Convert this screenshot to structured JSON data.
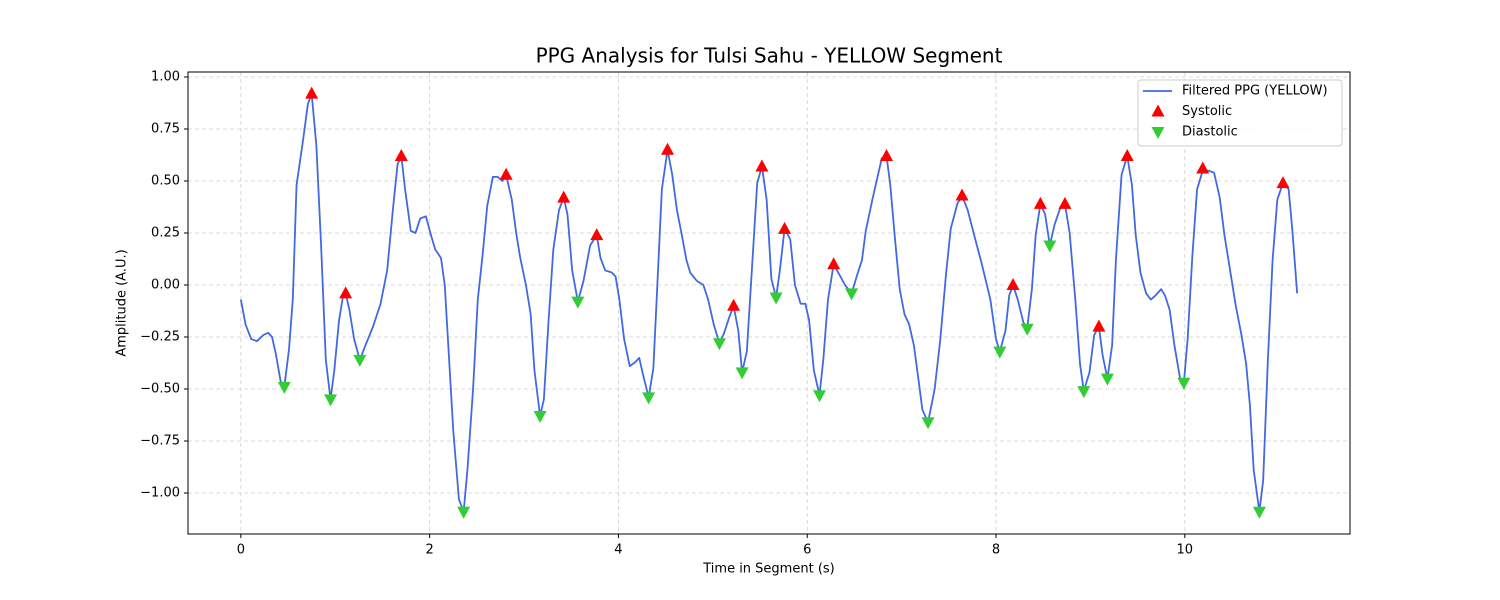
{
  "chart_data": {
    "type": "line",
    "title": "PPG Analysis for Tulsi Sahu - YELLOW Segment",
    "x_label": "Time in Segment (s)",
    "y_label": "Amplitude (A.U.)",
    "xlim": [
      -0.56,
      11.75
    ],
    "ylim": [
      -1.197,
      1.024
    ],
    "xticks": [
      0,
      2,
      4,
      6,
      8,
      10
    ],
    "yticks": [
      {
        "value": -1,
        "label": "−1.00"
      },
      {
        "value": -0.75,
        "label": "−0.75"
      },
      {
        "value": -0.5,
        "label": "−0.50"
      },
      {
        "value": -0.25,
        "label": "−0.25"
      },
      {
        "value": 0,
        "label": "0.00"
      },
      {
        "value": 0.25,
        "label": "0.25"
      },
      {
        "value": 0.5,
        "label": "0.50"
      },
      {
        "value": 0.75,
        "label": "0.75"
      },
      {
        "value": 1,
        "label": "1.00"
      }
    ],
    "grid": true,
    "legend": "upper right",
    "series": [
      {
        "name": "Filtered PPG (YELLOW)",
        "color": "#4169e1",
        "marker": "line",
        "x": [
          0,
          0.05,
          0.11,
          0.17,
          0.24,
          0.29,
          0.33,
          0.37,
          0.42,
          0.46,
          0.51,
          0.55,
          0.59,
          0.66,
          0.71,
          0.75,
          0.8,
          0.85,
          0.9,
          0.95,
          0.99,
          1.04,
          1.08,
          1.11,
          1.15,
          1.2,
          1.26,
          1.32,
          1.4,
          1.48,
          1.55,
          1.61,
          1.66,
          1.7,
          1.74,
          1.8,
          1.85,
          1.9,
          1.96,
          2.02,
          2.06,
          2.12,
          2.16,
          2.2,
          2.25,
          2.31,
          2.36,
          2.4,
          2.46,
          2.51,
          2.56,
          2.61,
          2.67,
          2.72,
          2.77,
          2.81,
          2.87,
          2.92,
          2.96,
          3.02,
          3.07,
          3.11,
          3.17,
          3.21,
          3.26,
          3.31,
          3.37,
          3.42,
          3.46,
          3.51,
          3.57,
          3.63,
          3.7,
          3.77,
          3.81,
          3.86,
          3.93,
          3.97,
          4.01,
          4.06,
          4.12,
          4.18,
          4.22,
          4.26,
          4.32,
          4.37,
          4.41,
          4.46,
          4.52,
          4.57,
          4.62,
          4.68,
          4.72,
          4.76,
          4.83,
          4.9,
          4.95,
          5.01,
          5.07,
          5.12,
          5.17,
          5.22,
          5.27,
          5.31,
          5.36,
          5.42,
          5.47,
          5.52,
          5.57,
          5.62,
          5.67,
          5.71,
          5.76,
          5.82,
          5.87,
          5.93,
          5.98,
          6.02,
          6.07,
          6.13,
          6.17,
          6.22,
          6.28,
          6.34,
          6.4,
          6.47,
          6.53,
          6.58,
          6.62,
          6.69,
          6.74,
          6.79,
          6.84,
          6.88,
          6.93,
          6.98,
          7.03,
          7.08,
          7.13,
          7.18,
          7.22,
          7.28,
          7.35,
          7.41,
          7.47,
          7.52,
          7.59,
          7.64,
          7.7,
          7.78,
          7.85,
          7.94,
          8.0,
          8.04,
          8.1,
          8.14,
          8.18,
          8.23,
          8.29,
          8.33,
          8.38,
          8.42,
          8.47,
          8.52,
          8.57,
          8.62,
          8.68,
          8.73,
          8.78,
          8.84,
          8.89,
          8.93,
          8.99,
          9.04,
          9.09,
          9.13,
          9.18,
          9.23,
          9.27,
          9.33,
          9.39,
          9.44,
          9.48,
          9.53,
          9.59,
          9.64,
          9.69,
          9.75,
          9.79,
          9.84,
          9.89,
          9.95,
          9.99,
          10.03,
          10.08,
          10.13,
          10.19,
          10.25,
          10.31,
          10.37,
          10.42,
          10.48,
          10.54,
          10.6,
          10.65,
          10.69,
          10.73,
          10.79,
          10.83,
          10.88,
          10.93,
          10.98,
          11.04,
          11.1,
          11.14,
          11.19
        ],
        "values": [
          -0.07,
          -0.19,
          -0.26,
          -0.27,
          -0.24,
          -0.23,
          -0.25,
          -0.33,
          -0.46,
          -0.49,
          -0.31,
          -0.07,
          0.48,
          0.7,
          0.87,
          0.92,
          0.67,
          0.19,
          -0.36,
          -0.55,
          -0.41,
          -0.17,
          -0.06,
          -0.04,
          -0.12,
          -0.26,
          -0.36,
          -0.29,
          -0.2,
          -0.09,
          0.07,
          0.36,
          0.58,
          0.62,
          0.46,
          0.26,
          0.25,
          0.32,
          0.33,
          0.23,
          0.17,
          0.13,
          0.0,
          -0.31,
          -0.7,
          -1.03,
          -1.09,
          -0.89,
          -0.5,
          -0.07,
          0.14,
          0.38,
          0.52,
          0.52,
          0.5,
          0.53,
          0.41,
          0.24,
          0.13,
          0.0,
          -0.14,
          -0.41,
          -0.63,
          -0.55,
          -0.17,
          0.17,
          0.36,
          0.42,
          0.34,
          0.07,
          -0.08,
          0.02,
          0.19,
          0.24,
          0.13,
          0.07,
          0.06,
          0.04,
          -0.07,
          -0.26,
          -0.39,
          -0.37,
          -0.35,
          -0.43,
          -0.54,
          -0.4,
          -0.02,
          0.46,
          0.65,
          0.53,
          0.36,
          0.22,
          0.12,
          0.06,
          0.02,
          0.0,
          -0.07,
          -0.19,
          -0.28,
          -0.23,
          -0.16,
          -0.1,
          -0.22,
          -0.42,
          -0.32,
          0.12,
          0.49,
          0.57,
          0.41,
          0.03,
          -0.06,
          0.07,
          0.27,
          0.22,
          0.0,
          -0.09,
          -0.09,
          -0.17,
          -0.41,
          -0.53,
          -0.36,
          -0.07,
          0.1,
          0.05,
          0.0,
          -0.04,
          0.05,
          0.12,
          0.26,
          0.41,
          0.51,
          0.61,
          0.62,
          0.48,
          0.22,
          -0.02,
          -0.14,
          -0.19,
          -0.29,
          -0.46,
          -0.6,
          -0.66,
          -0.5,
          -0.26,
          0.05,
          0.27,
          0.39,
          0.43,
          0.36,
          0.22,
          0.1,
          -0.07,
          -0.26,
          -0.32,
          -0.22,
          -0.05,
          0.0,
          -0.07,
          -0.18,
          -0.21,
          -0.02,
          0.24,
          0.39,
          0.34,
          0.19,
          0.29,
          0.37,
          0.39,
          0.25,
          -0.07,
          -0.38,
          -0.51,
          -0.42,
          -0.24,
          -0.2,
          -0.34,
          -0.45,
          -0.29,
          0.12,
          0.53,
          0.62,
          0.48,
          0.24,
          0.06,
          -0.04,
          -0.07,
          -0.05,
          -0.02,
          -0.05,
          -0.12,
          -0.29,
          -0.45,
          -0.47,
          -0.26,
          0.14,
          0.46,
          0.55,
          0.55,
          0.54,
          0.42,
          0.24,
          0.07,
          -0.1,
          -0.24,
          -0.38,
          -0.58,
          -0.89,
          -1.09,
          -0.94,
          -0.36,
          0.12,
          0.41,
          0.49,
          0.46,
          0.26,
          -0.04
        ]
      },
      {
        "name": "Systolic",
        "color": "#ff0000",
        "marker": "triangle-up",
        "x": [
          0.75,
          1.11,
          1.7,
          2.81,
          3.42,
          3.77,
          4.52,
          5.22,
          5.52,
          5.76,
          6.28,
          6.84,
          7.64,
          8.18,
          8.47,
          8.73,
          9.09,
          9.39,
          10.19,
          11.04
        ],
        "values": [
          0.92,
          -0.04,
          0.62,
          0.53,
          0.42,
          0.24,
          0.65,
          -0.1,
          0.57,
          0.27,
          0.1,
          0.62,
          0.43,
          0.0,
          0.39,
          0.39,
          -0.2,
          0.62,
          0.56,
          0.49
        ]
      },
      {
        "name": "Diastolic",
        "color": "#32cd32",
        "marker": "triangle-down",
        "x": [
          0.46,
          0.95,
          1.26,
          2.36,
          3.17,
          3.57,
          4.32,
          5.07,
          5.31,
          5.67,
          6.13,
          6.47,
          7.28,
          8.04,
          8.33,
          8.57,
          8.93,
          9.18,
          9.99,
          10.79
        ],
        "values": [
          -0.49,
          -0.55,
          -0.36,
          -1.09,
          -0.63,
          -0.08,
          -0.54,
          -0.28,
          -0.42,
          -0.06,
          -0.53,
          -0.04,
          -0.66,
          -0.32,
          -0.21,
          0.19,
          -0.51,
          -0.45,
          -0.47,
          -1.09
        ]
      }
    ]
  }
}
